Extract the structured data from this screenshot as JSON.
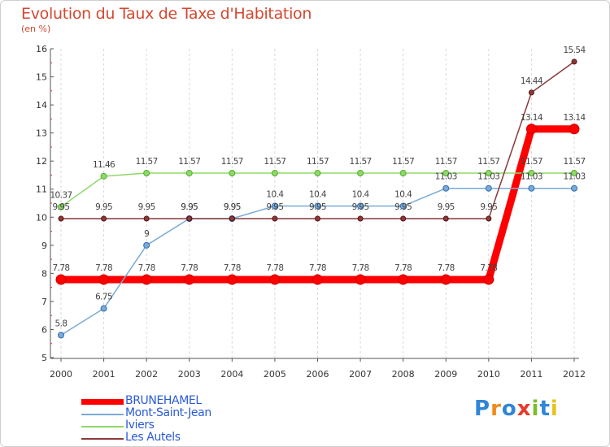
{
  "header": {
    "title": "Evolution du Taux de Taxe d'Habitation",
    "subtitle": "(en %)"
  },
  "chart_data": {
    "type": "line",
    "title": "Evolution du Taux de Taxe d'Habitation",
    "subtitle": "(en %)",
    "xlabel": "",
    "ylabel": "(en %)",
    "ylim": [
      5,
      16
    ],
    "yticks": [
      "5",
      "6",
      "7",
      "8",
      "9",
      "10",
      "11",
      "12",
      "13",
      "14",
      "15",
      "16"
    ],
    "categories": [
      "2000",
      "2001",
      "2002",
      "2003",
      "2004",
      "2005",
      "2006",
      "2007",
      "2008",
      "2009",
      "2010",
      "2011",
      "2012"
    ],
    "grid": "vertical-dashed",
    "series": [
      {
        "name": "BRUNEHAMEL",
        "color": "#ff0000",
        "values": [
          7.78,
          7.78,
          7.78,
          7.78,
          7.78,
          7.78,
          7.78,
          7.78,
          7.78,
          7.78,
          7.78,
          13.14,
          13.14
        ],
        "labels": [
          "7.78",
          "7.78",
          "7.78",
          "7.78",
          "7.78",
          "7.78",
          "7.78",
          "7.78",
          "7.78",
          "7.78",
          "7.78",
          "13.14",
          "13.14"
        ]
      },
      {
        "name": "Mont-Saint-Jean",
        "color": "#7baad6",
        "values": [
          5.8,
          6.75,
          9,
          9.95,
          9.95,
          10.4,
          10.4,
          10.4,
          10.4,
          11.03,
          11.03,
          11.03,
          11.03
        ],
        "labels": [
          "5.8",
          "6.75",
          "9",
          "9.95",
          "9.95",
          "10.4",
          "10.4",
          "10.4",
          "10.4",
          "11.03",
          "11.03",
          "11.03",
          "11.03"
        ]
      },
      {
        "name": "Iviers",
        "color": "#8fd86a",
        "values": [
          10.37,
          11.46,
          11.57,
          11.57,
          11.57,
          11.57,
          11.57,
          11.57,
          11.57,
          11.57,
          11.57,
          11.57,
          11.57
        ],
        "labels": [
          "10.37",
          "11.46",
          "11.57",
          "11.57",
          "11.57",
          "11.57",
          "11.57",
          "11.57",
          "11.57",
          "11.57",
          "11.57",
          "11.57",
          "11.57"
        ]
      },
      {
        "name": "Les Autels",
        "color": "#8b3a3a",
        "values": [
          9.95,
          9.95,
          9.95,
          9.95,
          9.95,
          9.95,
          9.95,
          9.95,
          9.95,
          9.95,
          9.95,
          14.44,
          15.54
        ],
        "labels": [
          "9.95",
          "9.95",
          "9.95",
          "9.95",
          "9.95",
          "9.95",
          "9.95",
          "9.95",
          "9.95",
          "9.95",
          "9.95",
          "14.44",
          "15.54"
        ]
      }
    ]
  },
  "legend": {
    "items": [
      {
        "label": "BRUNEHAMEL",
        "color": "#ff0000"
      },
      {
        "label": "Mont-Saint-Jean",
        "color": "#7baad6"
      },
      {
        "label": "Iviers",
        "color": "#8fd86a"
      },
      {
        "label": "Les Autels",
        "color": "#8b3a3a"
      }
    ]
  },
  "logo": {
    "text": "Proxiti",
    "letters": [
      "P",
      "r",
      "o",
      "x",
      "i",
      "t",
      "i"
    ],
    "colors": [
      "#2f86d6",
      "#f08a1c",
      "#2f86d6",
      "#e53b2c",
      "#7bbf2a",
      "#2f86d6",
      "#e8c21a"
    ]
  }
}
